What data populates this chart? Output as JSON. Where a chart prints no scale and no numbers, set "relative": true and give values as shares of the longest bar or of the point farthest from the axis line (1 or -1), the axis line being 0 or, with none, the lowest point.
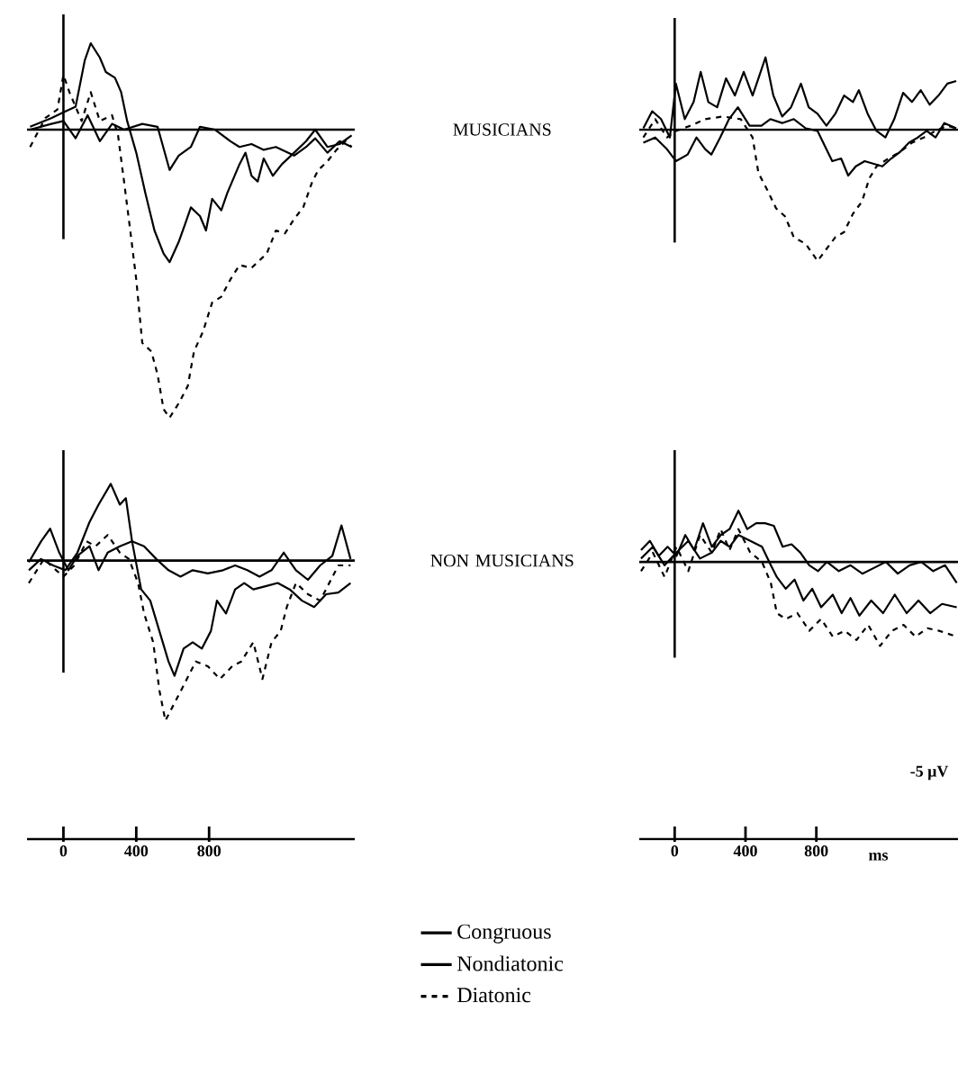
{
  "chart_data": [
    {
      "type": "line",
      "relative": true,
      "xlim": [
        -200,
        1600
      ],
      "tick_labels": false,
      "legend": "bottom",
      "ref_lines": [
        {
          "axis": "x",
          "value": 0
        }
      ],
      "annotations": [
        "MUSICIANS"
      ],
      "series": [
        {
          "name": "Congruous",
          "color": "#000000",
          "line_style": "solid",
          "x": [
            -183,
            -67,
            0,
            67,
            133,
            200,
            267,
            333,
            433,
            517,
            583,
            633,
            700,
            750,
            833,
            917,
            967,
            1033,
            1100,
            1167,
            1267,
            1333,
            1383,
            1450,
            1517,
            1583
          ],
          "values": [
            0.0,
            0.02,
            0.03,
            -0.03,
            0.05,
            -0.04,
            0.02,
            0.0,
            0.02,
            0.01,
            -0.14,
            -0.09,
            -0.06,
            0.01,
            0.0,
            -0.04,
            -0.06,
            -0.05,
            -0.07,
            -0.06,
            -0.09,
            -0.06,
            -0.03,
            -0.08,
            -0.04,
            -0.06
          ]
        },
        {
          "name": "Nondiatonic",
          "color": "#000000",
          "line_style": "solid",
          "x": [
            -183,
            -67,
            0,
            67,
            117,
            150,
            200,
            233,
            283,
            317,
            350,
            400,
            450,
            500,
            550,
            583,
            633,
            667,
            700,
            750,
            783,
            817,
            867,
            900,
            967,
            1000,
            1033,
            1067,
            1100,
            1150,
            1200,
            1267,
            1333,
            1383,
            1450,
            1517,
            1583
          ],
          "values": [
            0.01,
            0.04,
            0.06,
            0.08,
            0.24,
            0.3,
            0.25,
            0.2,
            0.18,
            0.13,
            0.03,
            -0.08,
            -0.22,
            -0.35,
            -0.43,
            -0.46,
            -0.39,
            -0.33,
            -0.27,
            -0.3,
            -0.35,
            -0.24,
            -0.28,
            -0.22,
            -0.12,
            -0.08,
            -0.16,
            -0.18,
            -0.1,
            -0.16,
            -0.12,
            -0.08,
            -0.04,
            0.0,
            -0.06,
            -0.05,
            -0.02
          ]
        },
        {
          "name": "Diatonic",
          "color": "#000000",
          "line_style": "dashed",
          "x": [
            -183,
            -100,
            -33,
            0,
            33,
            100,
            150,
            200,
            267,
            300,
            333,
            367,
            400,
            433,
            483,
            517,
            550,
            583,
            633,
            683,
            717,
            767,
            817,
            867,
            917,
            967,
            1033,
            1117,
            1167,
            1217,
            1267,
            1317,
            1367,
            1400,
            1450,
            1500,
            1550,
            1583
          ],
          "values": [
            -0.06,
            0.04,
            0.07,
            0.19,
            0.13,
            0.03,
            0.13,
            0.03,
            0.05,
            -0.02,
            -0.18,
            -0.35,
            -0.52,
            -0.74,
            -0.77,
            -0.85,
            -0.97,
            -1,
            -0.95,
            -0.89,
            -0.77,
            -0.7,
            -0.6,
            -0.58,
            -0.52,
            -0.47,
            -0.48,
            -0.43,
            -0.35,
            -0.36,
            -0.31,
            -0.27,
            -0.18,
            -0.14,
            -0.11,
            -0.07,
            -0.04,
            -0.06
          ]
        }
      ]
    },
    {
      "type": "line",
      "relative": true,
      "xlim": [
        -200,
        1600
      ],
      "tick_labels": false,
      "ref_lines": [
        {
          "axis": "x",
          "value": 0
        }
      ],
      "series": [
        {
          "color": "#000000",
          "line_style": "solid",
          "x": [
            -177,
            -127,
            -77,
            -27,
            7,
            57,
            107,
            147,
            190,
            240,
            290,
            340,
            390,
            440,
            473,
            513,
            557,
            607,
            657,
            713,
            757,
            807,
            857,
            907,
            957,
            1007,
            1040,
            1090,
            1140,
            1190,
            1240,
            1290,
            1340,
            1390,
            1440,
            1490,
            1540,
            1590
          ],
          "values": [
            0.01,
            0.14,
            0.08,
            -0.06,
            0.35,
            0.08,
            0.21,
            0.44,
            0.21,
            0.17,
            0.39,
            0.26,
            0.44,
            0.26,
            0.39,
            0.55,
            0.26,
            0.1,
            0.17,
            0.35,
            0.17,
            0.12,
            0.03,
            0.12,
            0.26,
            0.21,
            0.3,
            0.12,
            -0.01,
            -0.06,
            0.08,
            0.28,
            0.21,
            0.3,
            0.19,
            0.26,
            0.35,
            0.37
          ]
        },
        {
          "color": "#000000",
          "line_style": "solid",
          "x": [
            -177,
            -110,
            -43,
            7,
            73,
            123,
            173,
            207,
            257,
            307,
            357,
            423,
            490,
            540,
            607,
            673,
            740,
            807,
            857,
            890,
            940,
            980,
            1023,
            1073,
            1123,
            1173,
            1223,
            1273,
            1323,
            1373,
            1423,
            1473,
            1523,
            1590
          ],
          "values": [
            -0.1,
            -0.06,
            -0.15,
            -0.24,
            -0.19,
            -0.06,
            -0.15,
            -0.19,
            -0.06,
            0.08,
            0.17,
            0.03,
            0.03,
            0.08,
            0.05,
            0.08,
            0.01,
            -0.01,
            -0.15,
            -0.24,
            -0.22,
            -0.35,
            -0.28,
            -0.24,
            -0.26,
            -0.28,
            -0.22,
            -0.17,
            -0.1,
            -0.06,
            -0.01,
            -0.06,
            0.05,
            0.01
          ]
        },
        {
          "color": "#000000",
          "line_style": "dashed",
          "x": [
            -177,
            -110,
            -43,
            7,
            90,
            173,
            273,
            373,
            440,
            473,
            523,
            573,
            623,
            673,
            740,
            807,
            857,
            907,
            957,
            1007,
            1057,
            1100,
            1140,
            1207,
            1273,
            1340,
            1407,
            1473,
            1540,
            1590
          ],
          "values": [
            -0.06,
            0.08,
            -0.06,
            -0.01,
            0.03,
            0.08,
            0.1,
            0.08,
            -0.06,
            -0.33,
            -0.46,
            -0.6,
            -0.66,
            -0.82,
            -0.87,
            -1,
            -0.91,
            -0.82,
            -0.78,
            -0.64,
            -0.55,
            -0.37,
            -0.28,
            -0.22,
            -0.17,
            -0.1,
            -0.06,
            -0.01,
            0.03,
            0.01
          ]
        }
      ]
    },
    {
      "type": "line",
      "relative": true,
      "xlim": [
        -200,
        1600
      ],
      "tick_labels": "x",
      "ref_lines": [
        {
          "axis": "x",
          "value": 0
        }
      ],
      "annotations": [
        "NON MUSICIANS"
      ],
      "xticks": [
        0,
        400,
        800
      ],
      "series": [
        {
          "color": "#000000",
          "line_style": "solid",
          "x": [
            -190,
            -123,
            -73,
            -23,
            27,
            77,
            143,
            193,
            243,
            310,
            377,
            443,
            510,
            577,
            643,
            710,
            793,
            877,
            943,
            1010,
            1077,
            1143,
            1210,
            1277,
            1343,
            1410,
            1477,
            1527,
            1577
          ],
          "values": [
            -0.01,
            0.12,
            0.2,
            0.05,
            -0.06,
            0.03,
            0.09,
            -0.06,
            0.05,
            0.09,
            0.12,
            0.09,
            0.01,
            -0.06,
            -0.1,
            -0.06,
            -0.08,
            -0.06,
            -0.03,
            -0.06,
            -0.1,
            -0.06,
            0.05,
            -0.06,
            -0.12,
            -0.03,
            0.03,
            0.22,
            0.01
          ]
        },
        {
          "color": "#000000",
          "line_style": "solid",
          "x": [
            -190,
            -123,
            -57,
            10,
            77,
            143,
            193,
            260,
            310,
            343,
            377,
            427,
            477,
            527,
            577,
            610,
            660,
            710,
            760,
            810,
            843,
            893,
            943,
            993,
            1043,
            1110,
            1177,
            1243,
            1310,
            1377,
            1443,
            1510,
            1577
          ],
          "values": [
            -0.06,
            0.01,
            -0.03,
            -0.06,
            0.05,
            0.24,
            0.35,
            0.48,
            0.35,
            0.39,
            0.12,
            -0.18,
            -0.25,
            -0.44,
            -0.63,
            -0.72,
            -0.55,
            -0.51,
            -0.55,
            -0.44,
            -0.25,
            -0.33,
            -0.18,
            -0.14,
            -0.18,
            -0.16,
            -0.14,
            -0.18,
            -0.25,
            -0.29,
            -0.21,
            -0.2,
            -0.14
          ]
        },
        {
          "color": "#000000",
          "line_style": "dashed",
          "x": [
            -190,
            -107,
            -40,
            0,
            60,
            127,
            177,
            243,
            310,
            360,
            410,
            443,
            493,
            527,
            560,
            610,
            660,
            727,
            793,
            860,
            927,
            977,
            1043,
            1093,
            1143,
            1193,
            1227,
            1277,
            1343,
            1410,
            1460,
            1510,
            1577
          ],
          "values": [
            -0.14,
            0.01,
            -0.06,
            -0.1,
            -0.03,
            0.12,
            0.09,
            0.16,
            0.05,
            0.01,
            -0.14,
            -0.33,
            -0.51,
            -0.81,
            -1,
            -0.89,
            -0.78,
            -0.63,
            -0.66,
            -0.74,
            -0.66,
            -0.63,
            -0.51,
            -0.74,
            -0.51,
            -0.44,
            -0.29,
            -0.14,
            -0.21,
            -0.25,
            -0.14,
            -0.03,
            -0.03
          ]
        }
      ]
    },
    {
      "type": "line",
      "relative": true,
      "xlim": [
        -200,
        1600
      ],
      "tick_labels": "x",
      "ref_lines": [
        {
          "axis": "x",
          "value": 0
        }
      ],
      "xlabel": "ms",
      "annotations": [
        "-5 μV"
      ],
      "xticks": [
        0,
        400,
        800
      ],
      "series": [
        {
          "color": "#000000",
          "line_style": "solid",
          "x": [
            -190,
            -140,
            -90,
            -40,
            10,
            60,
            110,
            160,
            210,
            260,
            310,
            360,
            410,
            460,
            510,
            560,
            610,
            660,
            710,
            760,
            810,
            860,
            927,
            993,
            1060,
            1127,
            1193,
            1260,
            1327,
            1393,
            1460,
            1527,
            1593
          ],
          "values": [
            0.14,
            0.25,
            0.07,
            0.18,
            0.07,
            0.32,
            0.14,
            0.46,
            0.18,
            0.32,
            0.39,
            0.61,
            0.39,
            0.46,
            0.46,
            0.43,
            0.18,
            0.21,
            0.11,
            -0.04,
            -0.11,
            0,
            -0.11,
            -0.04,
            -0.14,
            -0.07,
            0,
            -0.14,
            -0.04,
            0,
            -0.11,
            -0.04,
            -0.25
          ]
        },
        {
          "color": "#000000",
          "line_style": "solid",
          "x": [
            -190,
            -123,
            -57,
            10,
            77,
            143,
            210,
            260,
            310,
            360,
            427,
            493,
            543,
            577,
            627,
            677,
            727,
            777,
            827,
            893,
            943,
            993,
            1043,
            1110,
            1177,
            1243,
            1310,
            1377,
            1443,
            1510,
            1593
          ],
          "values": [
            0.04,
            0.18,
            -0.04,
            0.11,
            0.25,
            0.04,
            0.11,
            0.25,
            0.18,
            0.32,
            0.25,
            0.18,
            -0.04,
            -0.18,
            -0.32,
            -0.21,
            -0.46,
            -0.32,
            -0.54,
            -0.39,
            -0.61,
            -0.43,
            -0.64,
            -0.46,
            -0.61,
            -0.39,
            -0.61,
            -0.46,
            -0.61,
            -0.5,
            -0.54
          ]
        },
        {
          "color": "#000000",
          "line_style": "dashed",
          "x": [
            -190,
            -123,
            -57,
            10,
            77,
            143,
            210,
            260,
            310,
            360,
            427,
            493,
            543,
            577,
            627,
            693,
            760,
            827,
            893,
            960,
            1027,
            1093,
            1160,
            1227,
            1293,
            1360,
            1427,
            1493,
            1593
          ],
          "values": [
            -0.11,
            0.11,
            -0.18,
            0.18,
            -0.11,
            0.32,
            0.11,
            0.39,
            0.14,
            0.39,
            0.11,
            0,
            -0.25,
            -0.61,
            -0.68,
            -0.61,
            -0.82,
            -0.68,
            -0.89,
            -0.82,
            -0.93,
            -0.75,
            -1,
            -0.82,
            -0.75,
            -0.89,
            -0.79,
            -0.82,
            -0.89
          ]
        }
      ]
    }
  ]
}
